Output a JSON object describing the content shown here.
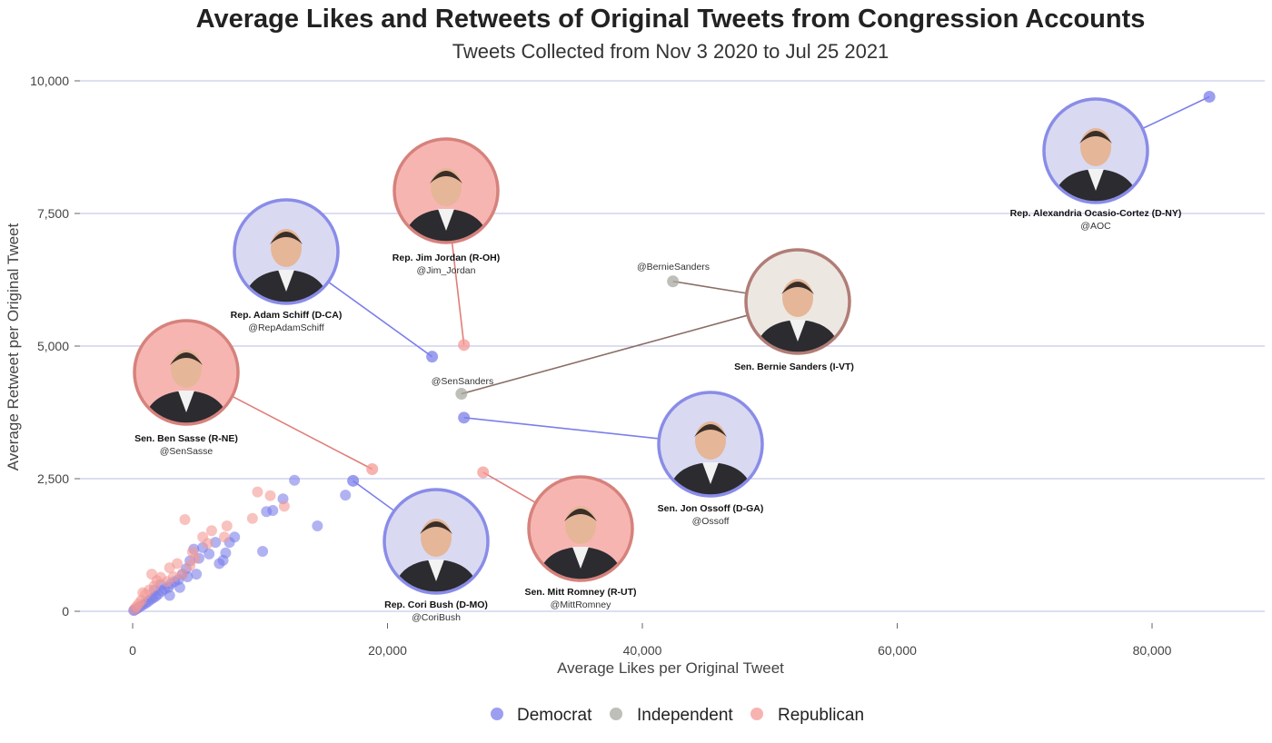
{
  "title": "Average Likes and Retweets of Original Tweets from Congression Accounts",
  "subtitle": "Tweets Collected from Nov 3 2020 to Jul 25 2021",
  "colors": {
    "Democrat": "#7b7fea",
    "Independent": "#a8aaa0",
    "Republican": "#f49a95",
    "Democrat_ring": "#8a8ce8",
    "Republican_ring": "#d6827c",
    "Independent_ring": "#b07d76",
    "Democrat_bg": "#d9d9f2",
    "Republican_bg": "#f7b5b1",
    "Independent_bg": "#ede7e2",
    "grid": "#b9bce6"
  },
  "chart_data": {
    "type": "scatter",
    "title": "Average Likes and Retweets of Original Tweets from Congression Accounts",
    "subtitle": "Tweets Collected from Nov 3 2020 to Jul 25 2021",
    "xlabel": "Average Likes per Original Tweet",
    "ylabel": "Average Retweet per Original Tweet",
    "xlim": [
      -4000,
      88000
    ],
    "ylim": [
      -300,
      10300
    ],
    "xticks": [
      0,
      20000,
      40000,
      60000,
      80000
    ],
    "xtick_labels": [
      "0",
      "20,000",
      "40,000",
      "60,000",
      "80,000"
    ],
    "yticks": [
      0,
      2500,
      5000,
      7500,
      10000
    ],
    "ytick_labels": [
      "0",
      "2,500",
      "5,000",
      "7,500",
      "10,000"
    ],
    "grid": "horizontal",
    "legend_position": "bottom",
    "legend": [
      "Democrat",
      "Independent",
      "Republican"
    ],
    "labeled_points": [
      {
        "party": "Democrat",
        "x": 84500,
        "y": 9700,
        "name": "Rep. Alexandria Ocasio-Cortez (D-NY)",
        "handle": "@AOC"
      },
      {
        "party": "Democrat",
        "x": 23500,
        "y": 4800,
        "name": "Rep. Adam Schiff (D-CA)",
        "handle": "@RepAdamSchiff"
      },
      {
        "party": "Republican",
        "x": 26000,
        "y": 5020,
        "name": "Rep. Jim Jordan (R-OH)",
        "handle": "@Jim_Jordan"
      },
      {
        "party": "Independent",
        "x": 42400,
        "y": 6220,
        "name": "",
        "handle": "@BernieSanders"
      },
      {
        "party": "Independent",
        "x": 25800,
        "y": 4100,
        "name": "Sen. Bernie Sanders (I-VT)",
        "handle": "@SenSanders"
      },
      {
        "party": "Democrat",
        "x": 26000,
        "y": 3650,
        "name": "Sen. Jon Ossoff (D-GA)",
        "handle": "@Ossoff"
      },
      {
        "party": "Republican",
        "x": 18800,
        "y": 2680,
        "name": "Sen. Ben Sasse (R-NE)",
        "handle": "@SenSasse"
      },
      {
        "party": "Republican",
        "x": 27500,
        "y": 2620,
        "name": "Sen. Mitt Romney (R-UT)",
        "handle": "@MittRomney"
      },
      {
        "party": "Democrat",
        "x": 17300,
        "y": 2460,
        "name": "Rep. Cori Bush (D-MO)",
        "handle": "@CoriBush"
      }
    ],
    "series": [
      {
        "name": "Democrat",
        "points": [
          [
            12700,
            2470
          ],
          [
            16700,
            2190
          ],
          [
            14500,
            1610
          ],
          [
            11800,
            2120
          ],
          [
            11000,
            1900
          ],
          [
            10500,
            1880
          ],
          [
            10200,
            1130
          ],
          [
            8000,
            1400
          ],
          [
            7600,
            1300
          ],
          [
            7300,
            1100
          ],
          [
            7100,
            960
          ],
          [
            6800,
            900
          ],
          [
            6000,
            1080
          ],
          [
            5500,
            1200
          ],
          [
            5200,
            1000
          ],
          [
            4800,
            1170
          ],
          [
            4500,
            950
          ],
          [
            4200,
            800
          ],
          [
            3900,
            700
          ],
          [
            3600,
            600
          ],
          [
            3300,
            560
          ],
          [
            3000,
            520
          ],
          [
            2800,
            450
          ],
          [
            2500,
            420
          ],
          [
            2300,
            380
          ],
          [
            2000,
            320
          ],
          [
            1800,
            280
          ],
          [
            1600,
            250
          ],
          [
            1400,
            220
          ],
          [
            1200,
            180
          ],
          [
            1000,
            150
          ],
          [
            800,
            120
          ],
          [
            600,
            90
          ],
          [
            400,
            60
          ],
          [
            250,
            40
          ],
          [
            150,
            25
          ],
          [
            80,
            15
          ],
          [
            5000,
            700
          ],
          [
            4300,
            650
          ],
          [
            3700,
            450
          ],
          [
            2900,
            300
          ],
          [
            2200,
            500
          ],
          [
            1700,
            400
          ],
          [
            6500,
            1300
          ]
        ]
      },
      {
        "name": "Independent",
        "points": []
      },
      {
        "name": "Republican",
        "points": [
          [
            9800,
            2250
          ],
          [
            10800,
            2180
          ],
          [
            11900,
            1980
          ],
          [
            9400,
            1750
          ],
          [
            7400,
            1610
          ],
          [
            6200,
            1520
          ],
          [
            4100,
            1730
          ],
          [
            5500,
            1400
          ],
          [
            5900,
            1280
          ],
          [
            4900,
            1000
          ],
          [
            4500,
            860
          ],
          [
            3900,
            700
          ],
          [
            3200,
            650
          ],
          [
            2700,
            560
          ],
          [
            2200,
            640
          ],
          [
            1700,
            480
          ],
          [
            1300,
            400
          ],
          [
            1000,
            320
          ],
          [
            700,
            210
          ],
          [
            500,
            150
          ],
          [
            300,
            90
          ],
          [
            150,
            40
          ],
          [
            2900,
            820
          ],
          [
            3500,
            900
          ],
          [
            4700,
            1120
          ],
          [
            1900,
            580
          ],
          [
            7200,
            1400
          ],
          [
            1500,
            700
          ],
          [
            800,
            350
          ]
        ]
      }
    ]
  }
}
